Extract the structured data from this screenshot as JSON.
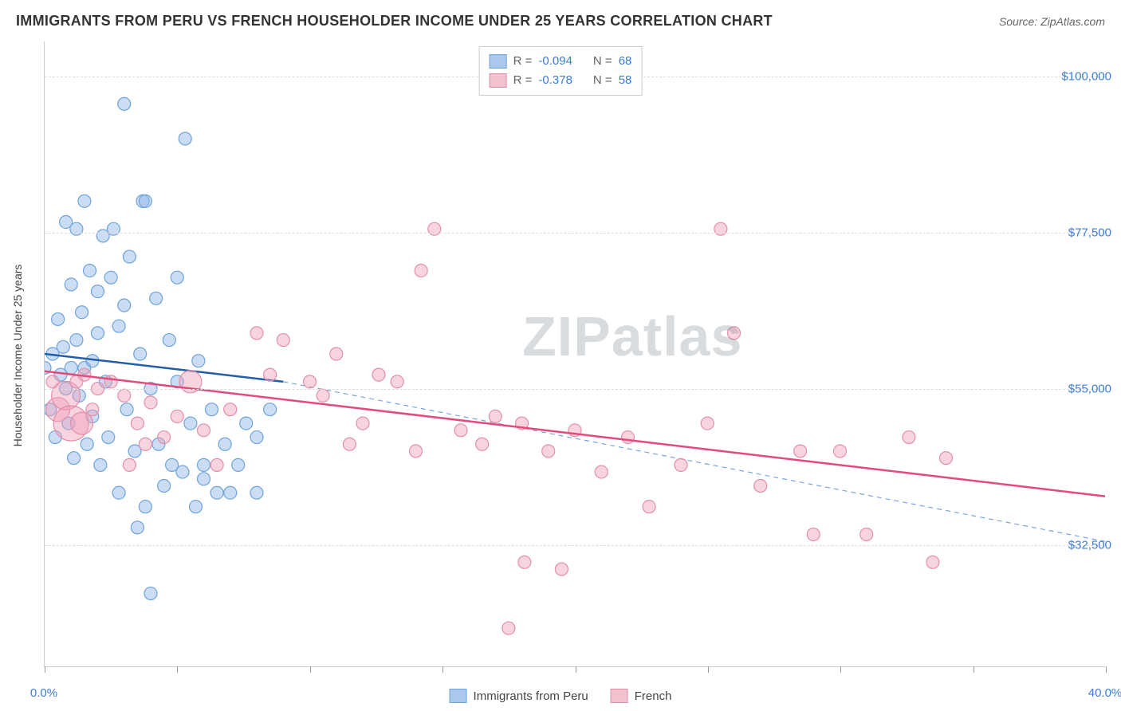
{
  "header": {
    "title": "IMMIGRANTS FROM PERU VS FRENCH HOUSEHOLDER INCOME UNDER 25 YEARS CORRELATION CHART",
    "source": "Source: ZipAtlas.com"
  },
  "watermark": {
    "text": "ZIPatlas",
    "color": "rgba(120,130,140,0.28)",
    "fontsize": 70
  },
  "chart": {
    "type": "scatter",
    "background_color": "#ffffff",
    "grid_color": "#dddddd",
    "axis_color": "#cccccc",
    "ylabel": "Householder Income Under 25 years",
    "ylabel_fontsize": 14,
    "xlim": [
      0,
      40
    ],
    "ylim": [
      15000,
      105000
    ],
    "x_ticks": [
      0,
      5,
      10,
      15,
      20,
      25,
      30,
      35,
      40
    ],
    "x_tick_labels": {
      "0": "0.0%",
      "40": "40.0%"
    },
    "y_gridlines": [
      32500,
      55000,
      77500,
      100000
    ],
    "y_tick_labels": {
      "32500": "$32,500",
      "55000": "$55,000",
      "77500": "$77,500",
      "100000": "$100,000"
    },
    "tick_label_color": "#3b7dd8",
    "tick_label_fontsize": 15,
    "marker_radius": 8,
    "marker_stroke_width": 1.2,
    "series": [
      {
        "key": "peru",
        "label": "Immigrants from Peru",
        "fill": "rgba(140,180,230,0.45)",
        "stroke": "#6fa3d9",
        "legend_fill": "#a9c8ec",
        "legend_border": "#6fa3d9",
        "R": "-0.094",
        "N": "68",
        "trend": {
          "solid": {
            "x1": 0.0,
            "y1": 60000,
            "x2": 9.0,
            "y2": 56000,
            "color": "#215eaa",
            "width": 2.5
          },
          "dashed": {
            "x1": 9.0,
            "y1": 56000,
            "x2": 40.0,
            "y2": 33000,
            "color": "#7aa4d6",
            "width": 1.2,
            "dash": "6 5"
          }
        },
        "points": [
          {
            "x": 0.0,
            "y": 58000
          },
          {
            "x": 0.2,
            "y": 52000
          },
          {
            "x": 0.3,
            "y": 60000
          },
          {
            "x": 0.4,
            "y": 48000
          },
          {
            "x": 0.5,
            "y": 65000
          },
          {
            "x": 0.6,
            "y": 57000
          },
          {
            "x": 0.7,
            "y": 61000
          },
          {
            "x": 0.8,
            "y": 55000
          },
          {
            "x": 0.8,
            "y": 79000
          },
          {
            "x": 0.9,
            "y": 50000
          },
          {
            "x": 1.0,
            "y": 58000
          },
          {
            "x": 1.0,
            "y": 70000
          },
          {
            "x": 1.1,
            "y": 45000
          },
          {
            "x": 1.2,
            "y": 62000
          },
          {
            "x": 1.2,
            "y": 78000
          },
          {
            "x": 1.3,
            "y": 54000
          },
          {
            "x": 1.4,
            "y": 66000
          },
          {
            "x": 1.5,
            "y": 58000
          },
          {
            "x": 1.5,
            "y": 82000
          },
          {
            "x": 1.6,
            "y": 47000
          },
          {
            "x": 1.7,
            "y": 72000
          },
          {
            "x": 1.8,
            "y": 59000
          },
          {
            "x": 1.8,
            "y": 51000
          },
          {
            "x": 2.0,
            "y": 63000
          },
          {
            "x": 2.0,
            "y": 69000
          },
          {
            "x": 2.1,
            "y": 44000
          },
          {
            "x": 2.2,
            "y": 77000
          },
          {
            "x": 2.3,
            "y": 56000
          },
          {
            "x": 2.4,
            "y": 48000
          },
          {
            "x": 2.5,
            "y": 71000
          },
          {
            "x": 2.6,
            "y": 78000
          },
          {
            "x": 2.8,
            "y": 64000
          },
          {
            "x": 2.8,
            "y": 40000
          },
          {
            "x": 3.0,
            "y": 67000
          },
          {
            "x": 3.0,
            "y": 96000
          },
          {
            "x": 3.1,
            "y": 52000
          },
          {
            "x": 3.2,
            "y": 74000
          },
          {
            "x": 3.4,
            "y": 46000
          },
          {
            "x": 3.5,
            "y": 35000
          },
          {
            "x": 3.6,
            "y": 60000
          },
          {
            "x": 3.7,
            "y": 82000
          },
          {
            "x": 3.8,
            "y": 38000
          },
          {
            "x": 3.8,
            "y": 82000
          },
          {
            "x": 4.0,
            "y": 55000
          },
          {
            "x": 4.0,
            "y": 25500
          },
          {
            "x": 4.2,
            "y": 68000
          },
          {
            "x": 4.3,
            "y": 47000
          },
          {
            "x": 4.5,
            "y": 41000
          },
          {
            "x": 4.7,
            "y": 62000
          },
          {
            "x": 4.8,
            "y": 44000
          },
          {
            "x": 5.0,
            "y": 56000
          },
          {
            "x": 5.0,
            "y": 71000
          },
          {
            "x": 5.2,
            "y": 43000
          },
          {
            "x": 5.3,
            "y": 91000
          },
          {
            "x": 5.5,
            "y": 50000
          },
          {
            "x": 5.7,
            "y": 38000
          },
          {
            "x": 5.8,
            "y": 59000
          },
          {
            "x": 6.0,
            "y": 44000
          },
          {
            "x": 6.0,
            "y": 42000
          },
          {
            "x": 6.3,
            "y": 52000
          },
          {
            "x": 6.5,
            "y": 40000
          },
          {
            "x": 6.8,
            "y": 47000
          },
          {
            "x": 7.0,
            "y": 40000
          },
          {
            "x": 7.3,
            "y": 44000
          },
          {
            "x": 7.6,
            "y": 50000
          },
          {
            "x": 8.0,
            "y": 40000
          },
          {
            "x": 8.0,
            "y": 48000
          },
          {
            "x": 8.5,
            "y": 52000
          }
        ]
      },
      {
        "key": "french",
        "label": "French",
        "fill": "rgba(240,160,185,0.45)",
        "stroke": "#e38fa9",
        "legend_fill": "#f3c0ce",
        "legend_border": "#e38fa9",
        "R": "-0.378",
        "N": "58",
        "trend": {
          "solid": {
            "x1": 0.0,
            "y1": 57500,
            "x2": 40.0,
            "y2": 39500,
            "color": "#e34b7a",
            "width": 2.5
          }
        },
        "points": [
          {
            "x": 0.3,
            "y": 56000
          },
          {
            "x": 0.5,
            "y": 52000,
            "r": 15
          },
          {
            "x": 0.8,
            "y": 54000,
            "r": 18
          },
          {
            "x": 1.0,
            "y": 50000,
            "r": 22
          },
          {
            "x": 1.2,
            "y": 56000
          },
          {
            "x": 1.4,
            "y": 50000,
            "r": 14
          },
          {
            "x": 1.5,
            "y": 57000
          },
          {
            "x": 1.8,
            "y": 52000
          },
          {
            "x": 2.0,
            "y": 55000
          },
          {
            "x": 2.5,
            "y": 56000
          },
          {
            "x": 3.0,
            "y": 54000
          },
          {
            "x": 3.2,
            "y": 44000
          },
          {
            "x": 3.5,
            "y": 50000
          },
          {
            "x": 3.8,
            "y": 47000
          },
          {
            "x": 4.0,
            "y": 53000
          },
          {
            "x": 4.5,
            "y": 48000
          },
          {
            "x": 5.0,
            "y": 51000
          },
          {
            "x": 5.5,
            "y": 56000,
            "r": 14
          },
          {
            "x": 6.0,
            "y": 49000
          },
          {
            "x": 6.5,
            "y": 44000
          },
          {
            "x": 7.0,
            "y": 52000
          },
          {
            "x": 8.0,
            "y": 63000
          },
          {
            "x": 8.5,
            "y": 57000
          },
          {
            "x": 9.0,
            "y": 62000
          },
          {
            "x": 10.0,
            "y": 56000
          },
          {
            "x": 10.5,
            "y": 54000
          },
          {
            "x": 11.0,
            "y": 60000
          },
          {
            "x": 11.5,
            "y": 47000
          },
          {
            "x": 12.0,
            "y": 50000
          },
          {
            "x": 12.6,
            "y": 57000
          },
          {
            "x": 13.3,
            "y": 56000
          },
          {
            "x": 14.0,
            "y": 46000
          },
          {
            "x": 14.2,
            "y": 72000
          },
          {
            "x": 14.7,
            "y": 78000
          },
          {
            "x": 15.7,
            "y": 49000
          },
          {
            "x": 16.5,
            "y": 47000
          },
          {
            "x": 17.0,
            "y": 51000
          },
          {
            "x": 17.5,
            "y": 20500
          },
          {
            "x": 18.0,
            "y": 50000
          },
          {
            "x": 18.1,
            "y": 30000
          },
          {
            "x": 19.0,
            "y": 46000
          },
          {
            "x": 19.5,
            "y": 29000
          },
          {
            "x": 20.0,
            "y": 49000
          },
          {
            "x": 21.0,
            "y": 43000
          },
          {
            "x": 22.0,
            "y": 48000
          },
          {
            "x": 22.8,
            "y": 38000
          },
          {
            "x": 24.0,
            "y": 44000
          },
          {
            "x": 25.0,
            "y": 50000
          },
          {
            "x": 25.5,
            "y": 78000
          },
          {
            "x": 26.0,
            "y": 63000
          },
          {
            "x": 27.0,
            "y": 41000
          },
          {
            "x": 28.5,
            "y": 46000
          },
          {
            "x": 29.0,
            "y": 34000
          },
          {
            "x": 30.0,
            "y": 46000
          },
          {
            "x": 31.0,
            "y": 34000
          },
          {
            "x": 32.6,
            "y": 48000
          },
          {
            "x": 33.5,
            "y": 30000
          },
          {
            "x": 34.0,
            "y": 45000
          }
        ]
      }
    ]
  },
  "legend_top": {
    "r_label": "R",
    "n_label": "N"
  },
  "legend_bottom": {}
}
